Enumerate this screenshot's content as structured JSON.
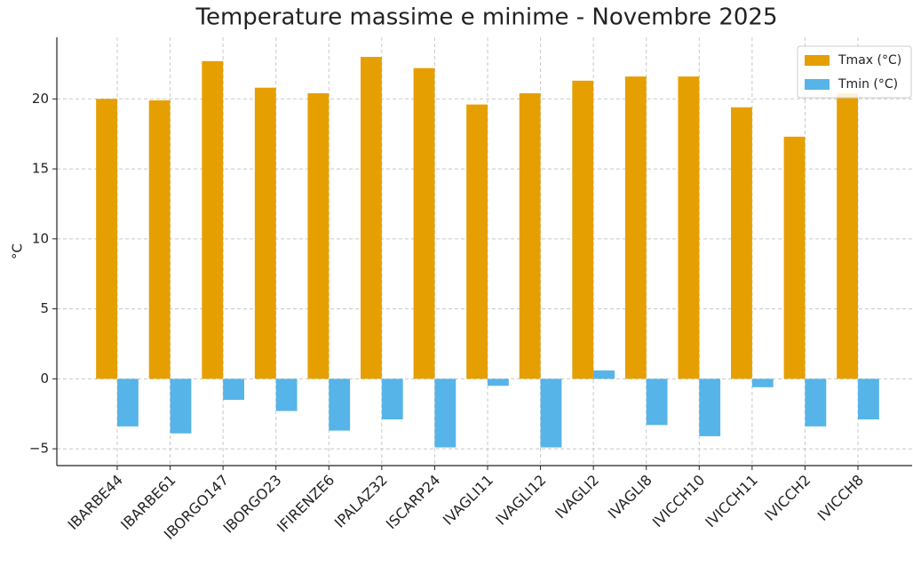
{
  "chart_data": {
    "type": "bar",
    "title": "Temperature massime e minime - Novembre 2025",
    "y_label": "°C",
    "categories": [
      "IBARBE44",
      "IBARBE61",
      "IBORGO147",
      "IBORGO23",
      "IFIRENZE6",
      "IPALAZ32",
      "ISCARP24",
      "IVAGLI11",
      "IVAGLI12",
      "IVAGLI2",
      "IVAGLI8",
      "IVICCH10",
      "IVICCH11",
      "IVICCH2",
      "IVICCH8"
    ],
    "series": [
      {
        "name": "Tmax (°C)",
        "color": "#e69f00",
        "values": [
          20.0,
          19.9,
          22.7,
          20.8,
          20.4,
          23.0,
          22.2,
          19.6,
          20.4,
          21.3,
          21.6,
          21.6,
          19.4,
          17.3,
          20.4
        ]
      },
      {
        "name": "Tmin (°C)",
        "color": "#56b4e9",
        "values": [
          -3.4,
          -3.9,
          -1.5,
          -2.3,
          -3.7,
          -2.9,
          -4.9,
          -0.5,
          -4.9,
          0.6,
          -3.3,
          -4.1,
          -0.6,
          -3.4,
          -2.9
        ]
      }
    ],
    "ylim": [
      -6.2,
      24.4
    ],
    "yticks": [
      {
        "value": -5,
        "label": "−5"
      },
      0,
      5,
      10,
      15,
      20
    ],
    "grid": true,
    "legend": "upper right"
  }
}
